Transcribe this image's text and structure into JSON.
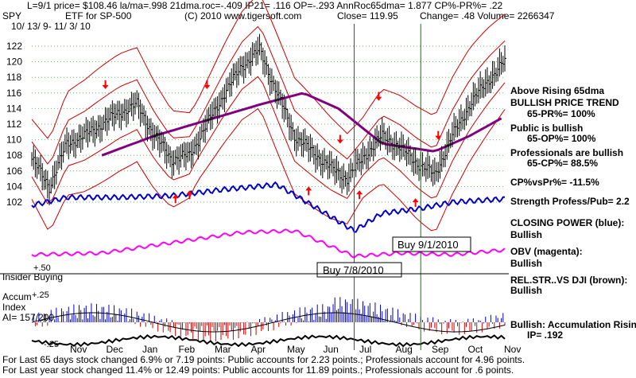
{
  "header": {
    "line1": "L=9/1  price= $108.46  la/ma=.998 21dma.roc=-.409 IP21= .116 OP=-.293 AnnRoc65dma= 1.877 CP%-PR%=  .22",
    "ticker": "SPY",
    "etf_label": "ETF for SP-500",
    "copyright": "(C) 2010 www.tigersoft.com",
    "close": "Close=  119.95",
    "change": "Change= .48 Volume= 2266347",
    "date_range": "10/ 13/ 9- 11/ 3/ 10"
  },
  "right_panel": [
    {
      "text": "Above Rising 65dma",
      "bold": true
    },
    {
      "text": "BULLISH PRICE TREND",
      "bold": true
    },
    {
      "text": "65-PR%= 100%",
      "bold": true
    },
    {
      "text": "Public is bullish",
      "bold": true
    },
    {
      "text": "65-OP%= 100%",
      "bold": true
    },
    {
      "text": "Professionals are bullish",
      "bold": true
    },
    {
      "text": "65-CP%= 88.5%",
      "bold": true
    },
    {
      "text": "CP%vsPr%= -11.5%",
      "bold": true
    },
    {
      "text": "Strength Profess/Pub= 2.2",
      "bold": true
    },
    {
      "text": "CLOSING POWER (blue):",
      "bold": true
    },
    {
      "text": "Bullish",
      "bold": true
    },
    {
      "text": "OBV (magenta):",
      "bold": true
    },
    {
      "text": "Bullish",
      "bold": true
    },
    {
      "text": "REL.STR..VS DJI (brown):",
      "bold": true
    },
    {
      "text": "Bullish",
      "bold": true
    },
    {
      "text": "Bullish: Accumulation Rising",
      "bold": true
    },
    {
      "text": "IP=  .192",
      "bold": true
    }
  ],
  "left_labels": {
    "insider": "Insider Buying",
    "plus50": "+.50",
    "accum": "Accum",
    "index": "Index",
    "ai": "AI= 157/200",
    "plus25": "+.25",
    "neg25": "-.25"
  },
  "annotations": {
    "buy1": "Buy 7/8/2010",
    "buy2": "Buy 9/1/2010"
  },
  "footer": {
    "line1": "For Last 65 days stock changed  6.9% or  7.19 points:  Public accounts for  2.23 points.;  Professionals account for  4.96 points.",
    "line2": "For Last year stock changed  11.4% or  12.49 points:  Public accounts for  11.89 points.;  Professionals account for  .6 points."
  },
  "colors": {
    "price": "#000000",
    "bands": "#cc0000",
    "ma65": "#800080",
    "closing_power": "#0000cc",
    "obv": "#ff00ff",
    "accum": "#0000cc",
    "buy_line": "#008000",
    "grid": "#7faa7f",
    "arrow": "#ff0000"
  },
  "chart_data": {
    "type": "line",
    "title": "SPY",
    "ylim": [
      101,
      123
    ],
    "y_ticks": [
      102,
      104,
      106,
      108,
      110,
      112,
      114,
      116,
      118,
      120,
      122
    ],
    "x_month_labels": [
      "Nov",
      "Dec",
      "Jan",
      "Feb",
      "Mar",
      "Apr",
      "May",
      "Jun",
      "Jul",
      "Aug",
      "Sep",
      "Oct",
      "Nov"
    ],
    "series": [
      {
        "type": "price",
        "x": [
          0,
          10,
          20,
          30,
          40,
          50,
          60,
          70,
          80,
          90,
          100,
          110,
          120,
          130,
          140,
          150,
          160,
          170,
          180,
          190,
          200,
          210,
          220,
          230,
          240,
          250,
          260,
          270
        ],
        "values": [
          107.5,
          104.0,
          109.5,
          110.5,
          112.0,
          113.5,
          114.5,
          110.5,
          107.5,
          108.0,
          112.0,
          116.0,
          119.5,
          121.5,
          116.0,
          110.5,
          108.5,
          106.5,
          105.0,
          108.0,
          110.5,
          109.0,
          107.0,
          105.5,
          110.5,
          114.5,
          117.5,
          120.0
        ]
      },
      {
        "type": "ma65",
        "x": [
          40,
          70,
          100,
          130,
          155,
          175,
          200,
          230,
          250,
          270
        ],
        "values": [
          108.0,
          110.5,
          112.5,
          114.5,
          116.0,
          114.0,
          109.5,
          108.5,
          110.5,
          113.0
        ]
      },
      {
        "name": "Buy 7/8/2010",
        "type": "signal",
        "x": [
          184
        ]
      },
      {
        "name": "Buy 9/1/2010",
        "type": "signal",
        "x": [
          222
        ]
      }
    ],
    "up_arrows_x": [
      82,
      90,
      158,
      187,
      219
    ],
    "down_arrows_x": [
      42,
      100,
      176,
      198,
      232
    ]
  }
}
